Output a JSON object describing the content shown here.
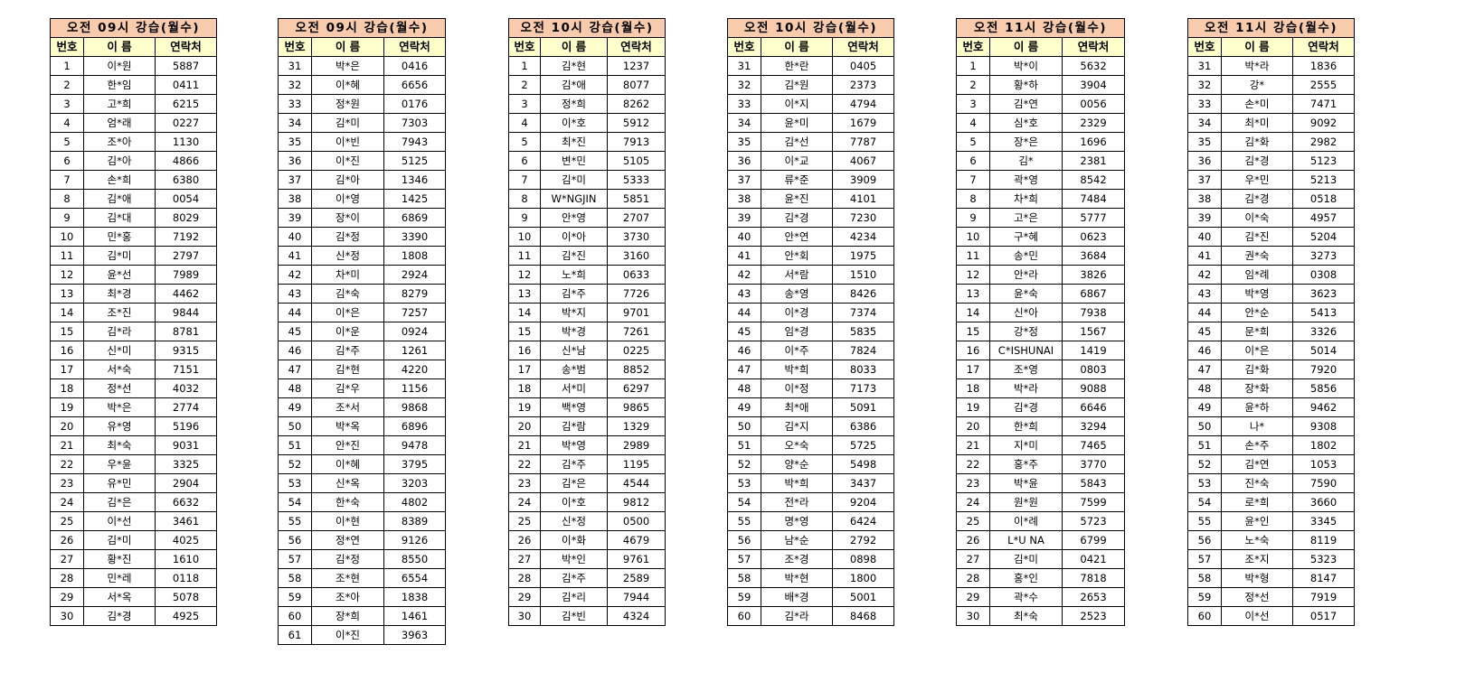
{
  "header_labels": {
    "number": "번호",
    "name": "이 름",
    "contact": "연락처"
  },
  "colors": {
    "title_bg": "#f8cbad",
    "header_bg": "#ffffcc",
    "border": "#000000"
  },
  "tables": [
    {
      "title": "오전 09시 강습(월수)",
      "rows": [
        [
          "1",
          "이*원",
          "5887"
        ],
        [
          "2",
          "한*임",
          "0411"
        ],
        [
          "3",
          "고*희",
          "6215"
        ],
        [
          "4",
          "엄*래",
          "0227"
        ],
        [
          "5",
          "조*아",
          "1130"
        ],
        [
          "6",
          "김*아",
          "4866"
        ],
        [
          "7",
          "손*희",
          "6380"
        ],
        [
          "8",
          "김*애",
          "0054"
        ],
        [
          "9",
          "김*대",
          "8029"
        ],
        [
          "10",
          "민*홍",
          "7192"
        ],
        [
          "11",
          "김*미",
          "2797"
        ],
        [
          "12",
          "윤*선",
          "7989"
        ],
        [
          "13",
          "최*경",
          "4462"
        ],
        [
          "14",
          "조*진",
          "9844"
        ],
        [
          "15",
          "김*라",
          "8781"
        ],
        [
          "16",
          "신*미",
          "9315"
        ],
        [
          "17",
          "서*숙",
          "7151"
        ],
        [
          "18",
          "정*선",
          "4032"
        ],
        [
          "19",
          "박*은",
          "2774"
        ],
        [
          "20",
          "유*영",
          "5196"
        ],
        [
          "21",
          "최*숙",
          "9031"
        ],
        [
          "22",
          "우*윤",
          "3325"
        ],
        [
          "23",
          "유*민",
          "2904"
        ],
        [
          "24",
          "김*은",
          "6632"
        ],
        [
          "25",
          "이*선",
          "3461"
        ],
        [
          "26",
          "김*미",
          "4025"
        ],
        [
          "27",
          "황*진",
          "1610"
        ],
        [
          "28",
          "민*레",
          "0118"
        ],
        [
          "29",
          "서*옥",
          "5078"
        ],
        [
          "30",
          "김*경",
          "4925"
        ]
      ]
    },
    {
      "title": "오전 09시 강습(월수)",
      "rows": [
        [
          "31",
          "박*은",
          "0416"
        ],
        [
          "32",
          "이*혜",
          "6656"
        ],
        [
          "33",
          "정*원",
          "0176"
        ],
        [
          "34",
          "김*미",
          "7303"
        ],
        [
          "35",
          "이*빈",
          "7943"
        ],
        [
          "36",
          "이*진",
          "5125"
        ],
        [
          "37",
          "김*아",
          "1346"
        ],
        [
          "38",
          "이*영",
          "1425"
        ],
        [
          "39",
          "장*이",
          "6869"
        ],
        [
          "40",
          "김*정",
          "3390"
        ],
        [
          "41",
          "신*정",
          "1808"
        ],
        [
          "42",
          "차*미",
          "2924"
        ],
        [
          "43",
          "김*숙",
          "8279"
        ],
        [
          "44",
          "이*은",
          "7257"
        ],
        [
          "45",
          "이*운",
          "0924"
        ],
        [
          "46",
          "김*주",
          "1261"
        ],
        [
          "47",
          "김*현",
          "4220"
        ],
        [
          "48",
          "김*우",
          "1156"
        ],
        [
          "49",
          "조*서",
          "9868"
        ],
        [
          "50",
          "박*옥",
          "6896"
        ],
        [
          "51",
          "안*진",
          "9478"
        ],
        [
          "52",
          "이*혜",
          "3795"
        ],
        [
          "53",
          "신*옥",
          "3203"
        ],
        [
          "54",
          "한*숙",
          "4802"
        ],
        [
          "55",
          "이*현",
          "8389"
        ],
        [
          "56",
          "정*연",
          "9126"
        ],
        [
          "57",
          "김*정",
          "8550"
        ],
        [
          "58",
          "조*현",
          "6554"
        ],
        [
          "59",
          "조*아",
          "1838"
        ],
        [
          "60",
          "장*희",
          "1461"
        ],
        [
          "61",
          "이*진",
          "3963"
        ]
      ]
    },
    {
      "title": "오전 10시 강습(월수)",
      "rows": [
        [
          "1",
          "김*현",
          "1237"
        ],
        [
          "2",
          "김*애",
          "8077"
        ],
        [
          "3",
          "정*희",
          "8262"
        ],
        [
          "4",
          "이*호",
          "5912"
        ],
        [
          "5",
          "최*진",
          "7913"
        ],
        [
          "6",
          "변*민",
          "5105"
        ],
        [
          "7",
          "김*미",
          "5333"
        ],
        [
          "8",
          "W*NGJIN",
          "5851"
        ],
        [
          "9",
          "안*영",
          "2707"
        ],
        [
          "10",
          "이*아",
          "3730"
        ],
        [
          "11",
          "김*진",
          "3160"
        ],
        [
          "12",
          "노*희",
          "0633"
        ],
        [
          "13",
          "김*주",
          "7726"
        ],
        [
          "14",
          "박*지",
          "9701"
        ],
        [
          "15",
          "박*경",
          "7261"
        ],
        [
          "16",
          "신*남",
          "0225"
        ],
        [
          "17",
          "송*범",
          "8852"
        ],
        [
          "18",
          "서*미",
          "6297"
        ],
        [
          "19",
          "백*영",
          "9865"
        ],
        [
          "20",
          "김*람",
          "1329"
        ],
        [
          "21",
          "박*영",
          "2989"
        ],
        [
          "22",
          "김*주",
          "1195"
        ],
        [
          "23",
          "김*은",
          "4544"
        ],
        [
          "24",
          "이*호",
          "9812"
        ],
        [
          "25",
          "신*정",
          "0500"
        ],
        [
          "26",
          "이*화",
          "4679"
        ],
        [
          "27",
          "박*인",
          "9761"
        ],
        [
          "28",
          "김*주",
          "2589"
        ],
        [
          "29",
          "김*리",
          "7944"
        ],
        [
          "30",
          "김*빈",
          "4324"
        ]
      ]
    },
    {
      "title": "오전 10시 강습(월수)",
      "rows": [
        [
          "31",
          "한*란",
          "0405"
        ],
        [
          "32",
          "김*원",
          "2373"
        ],
        [
          "33",
          "이*지",
          "4794"
        ],
        [
          "34",
          "윤*미",
          "1679"
        ],
        [
          "35",
          "김*선",
          "7787"
        ],
        [
          "36",
          "이*교",
          "4067"
        ],
        [
          "37",
          "류*준",
          "3909"
        ],
        [
          "38",
          "윤*진",
          "4101"
        ],
        [
          "39",
          "김*경",
          "7230"
        ],
        [
          "40",
          "안*연",
          "4234"
        ],
        [
          "41",
          "안*회",
          "1975"
        ],
        [
          "42",
          "서*람",
          "1510"
        ],
        [
          "43",
          "송*영",
          "8426"
        ],
        [
          "44",
          "이*경",
          "7374"
        ],
        [
          "45",
          "임*경",
          "5835"
        ],
        [
          "46",
          "이*주",
          "7824"
        ],
        [
          "47",
          "박*희",
          "8033"
        ],
        [
          "48",
          "이*정",
          "7173"
        ],
        [
          "49",
          "최*애",
          "5091"
        ],
        [
          "50",
          "김*지",
          "6386"
        ],
        [
          "51",
          "오*숙",
          "5725"
        ],
        [
          "52",
          "양*순",
          "5498"
        ],
        [
          "53",
          "박*희",
          "3437"
        ],
        [
          "54",
          "전*라",
          "9204"
        ],
        [
          "55",
          "명*영",
          "6424"
        ],
        [
          "56",
          "남*순",
          "2792"
        ],
        [
          "57",
          "조*경",
          "0898"
        ],
        [
          "58",
          "박*현",
          "1800"
        ],
        [
          "59",
          "배*경",
          "5001"
        ],
        [
          "60",
          "김*라",
          "8468"
        ]
      ]
    },
    {
      "title": "오전 11시 강습(월수)",
      "rows": [
        [
          "1",
          "박*이",
          "5632"
        ],
        [
          "2",
          "황*하",
          "3904"
        ],
        [
          "3",
          "김*연",
          "0056"
        ],
        [
          "4",
          "심*호",
          "2329"
        ],
        [
          "5",
          "장*은",
          "1696"
        ],
        [
          "6",
          "김*",
          "2381"
        ],
        [
          "7",
          "곽*영",
          "8542"
        ],
        [
          "8",
          "차*희",
          "7484"
        ],
        [
          "9",
          "고*은",
          "5777"
        ],
        [
          "10",
          "구*혜",
          "0623"
        ],
        [
          "11",
          "송*민",
          "3684"
        ],
        [
          "12",
          "안*라",
          "3826"
        ],
        [
          "13",
          "윤*숙",
          "6867"
        ],
        [
          "14",
          "신*아",
          "7938"
        ],
        [
          "15",
          "강*정",
          "1567"
        ],
        [
          "16",
          "C*ISHUNAI",
          "1419"
        ],
        [
          "17",
          "조*영",
          "0803"
        ],
        [
          "18",
          "박*라",
          "9088"
        ],
        [
          "19",
          "김*경",
          "6646"
        ],
        [
          "20",
          "한*희",
          "3294"
        ],
        [
          "21",
          "지*미",
          "7465"
        ],
        [
          "22",
          "홍*주",
          "3770"
        ],
        [
          "23",
          "박*윤",
          "5843"
        ],
        [
          "24",
          "원*원",
          "7599"
        ],
        [
          "25",
          "이*례",
          "5723"
        ],
        [
          "26",
          "L*U NA",
          "6799"
        ],
        [
          "27",
          "김*미",
          "0421"
        ],
        [
          "28",
          "홍*인",
          "7818"
        ],
        [
          "29",
          "곽*수",
          "2653"
        ],
        [
          "30",
          "최*숙",
          "2523"
        ]
      ]
    },
    {
      "title": "오전 11시 강습(월수)",
      "rows": [
        [
          "31",
          "박*라",
          "1836"
        ],
        [
          "32",
          "강*",
          "2555"
        ],
        [
          "33",
          "손*미",
          "7471"
        ],
        [
          "34",
          "최*미",
          "9092"
        ],
        [
          "35",
          "김*화",
          "2982"
        ],
        [
          "36",
          "김*경",
          "5123"
        ],
        [
          "37",
          "우*민",
          "5213"
        ],
        [
          "38",
          "김*경",
          "0518"
        ],
        [
          "39",
          "이*숙",
          "4957"
        ],
        [
          "40",
          "김*진",
          "5204"
        ],
        [
          "41",
          "권*숙",
          "3273"
        ],
        [
          "42",
          "임*례",
          "0308"
        ],
        [
          "43",
          "박*영",
          "3623"
        ],
        [
          "44",
          "안*순",
          "5413"
        ],
        [
          "45",
          "문*희",
          "3326"
        ],
        [
          "46",
          "이*은",
          "5014"
        ],
        [
          "47",
          "김*화",
          "7920"
        ],
        [
          "48",
          "장*화",
          "5856"
        ],
        [
          "49",
          "윤*하",
          "9462"
        ],
        [
          "50",
          "나*",
          "9308"
        ],
        [
          "51",
          "손*주",
          "1802"
        ],
        [
          "52",
          "김*연",
          "1053"
        ],
        [
          "53",
          "진*숙",
          "7590"
        ],
        [
          "54",
          "로*희",
          "3660"
        ],
        [
          "55",
          "윤*인",
          "3345"
        ],
        [
          "56",
          "노*숙",
          "8119"
        ],
        [
          "57",
          "조*지",
          "5323"
        ],
        [
          "58",
          "박*형",
          "8147"
        ],
        [
          "59",
          "정*선",
          "7919"
        ],
        [
          "60",
          "이*선",
          "0517"
        ]
      ]
    }
  ]
}
